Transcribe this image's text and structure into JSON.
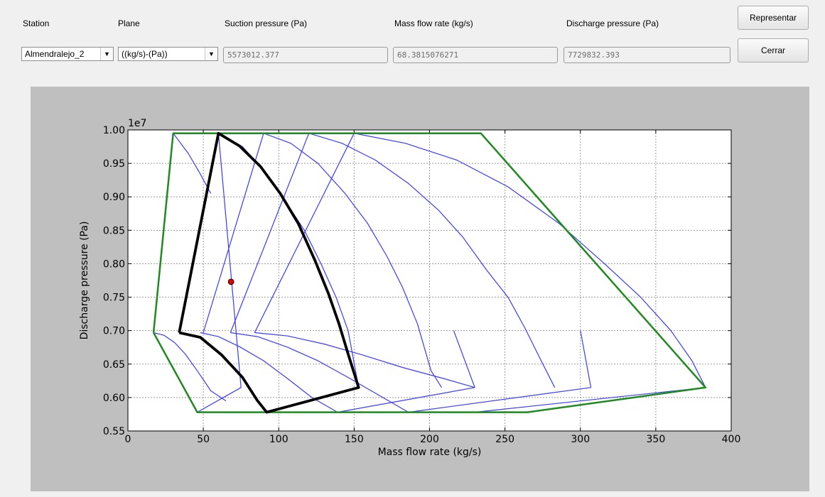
{
  "labels": {
    "station": "Station",
    "plane": "Plane",
    "suction": "Suction pressure (Pa)",
    "mass_flow": "Mass flow rate (kg/s)",
    "discharge": "Discharge pressure (Pa)"
  },
  "controls": {
    "station_value": "Almendralejo_2",
    "plane_value": "((kg/s)-(Pa))",
    "suction_value": "5573012.377",
    "mass_flow_value": "68.3815076271",
    "discharge_value": "7729832.393"
  },
  "buttons": {
    "represent": "Representar",
    "close": "Cerrar"
  },
  "icons": {
    "dropdown": "chevron-down-icon"
  },
  "chart_data": {
    "type": "line",
    "xlabel": "Mass flow rate (kg/s)",
    "ylabel": "Discharge pressure (Pa)",
    "y_offset_label": "1e7",
    "xlim": [
      0,
      400
    ],
    "ylim": [
      0.55,
      1.0
    ],
    "grid": true,
    "x_ticks": [
      "0",
      "50",
      "100",
      "150",
      "200",
      "250",
      "300",
      "350",
      "400"
    ],
    "y_ticks": [
      "0.55",
      "0.60",
      "0.65",
      "0.70",
      "0.75",
      "0.80",
      "0.85",
      "0.90",
      "0.95",
      "1.00"
    ],
    "colors": {
      "envelope": "#1f8a1f",
      "operating": "#000000",
      "curves": "#3a3aff",
      "point": "#e00000"
    },
    "series": [
      {
        "kind": "envelope",
        "points": [
          [
            17,
            0.697
          ],
          [
            30,
            0.995
          ],
          [
            234,
            0.995
          ],
          [
            383,
            0.615
          ],
          [
            265,
            0.578
          ],
          [
            46,
            0.578
          ],
          [
            17,
            0.697
          ]
        ]
      },
      {
        "kind": "operating",
        "points": [
          [
            34,
            0.697
          ],
          [
            60,
            0.995
          ],
          [
            74,
            0.976
          ],
          [
            88,
            0.945
          ],
          [
            101,
            0.905
          ],
          [
            113,
            0.86
          ],
          [
            124,
            0.805
          ],
          [
            133,
            0.755
          ],
          [
            140,
            0.71
          ],
          [
            146,
            0.665
          ],
          [
            153,
            0.615
          ],
          [
            92,
            0.578
          ],
          [
            86,
            0.595
          ],
          [
            76,
            0.63
          ],
          [
            62,
            0.664
          ],
          [
            48,
            0.69
          ],
          [
            34,
            0.697
          ]
        ]
      },
      {
        "kind": "curve",
        "points": [
          [
            30,
            0.995
          ],
          [
            40,
            0.965
          ],
          [
            47,
            0.938
          ],
          [
            55,
            0.905
          ]
        ]
      },
      {
        "kind": "curve",
        "points": [
          [
            17,
            0.697
          ],
          [
            24,
            0.693
          ],
          [
            31,
            0.682
          ],
          [
            38,
            0.665
          ],
          [
            46,
            0.64
          ],
          [
            55,
            0.61
          ],
          [
            65,
            0.595
          ]
        ]
      },
      {
        "kind": "curve",
        "points": [
          [
            48,
            0.697
          ],
          [
            60,
            0.691
          ],
          [
            74,
            0.676
          ],
          [
            90,
            0.655
          ],
          [
            106,
            0.628
          ],
          [
            122,
            0.6
          ],
          [
            139,
            0.578
          ]
        ]
      },
      {
        "kind": "curve",
        "points": [
          [
            68,
            0.697
          ],
          [
            86,
            0.691
          ],
          [
            106,
            0.675
          ],
          [
            126,
            0.655
          ],
          [
            146,
            0.63
          ],
          [
            166,
            0.604
          ],
          [
            186,
            0.578
          ]
        ]
      },
      {
        "kind": "curve",
        "points": [
          [
            84,
            0.697
          ],
          [
            106,
            0.692
          ],
          [
            130,
            0.68
          ],
          [
            155,
            0.664
          ],
          [
            182,
            0.645
          ],
          [
            210,
            0.628
          ],
          [
            230,
            0.615
          ]
        ]
      },
      {
        "kind": "curve",
        "points": [
          [
            60,
            0.995
          ],
          [
            76,
            0.975
          ],
          [
            90,
            0.94
          ],
          [
            104,
            0.895
          ],
          [
            117,
            0.85
          ],
          [
            128,
            0.8
          ],
          [
            138,
            0.75
          ],
          [
            146,
            0.7
          ],
          [
            153,
            0.615
          ]
        ]
      },
      {
        "kind": "curve",
        "points": [
          [
            90,
            0.995
          ],
          [
            108,
            0.98
          ],
          [
            126,
            0.95
          ],
          [
            144,
            0.905
          ],
          [
            159,
            0.86
          ],
          [
            172,
            0.81
          ],
          [
            182,
            0.765
          ],
          [
            192,
            0.71
          ],
          [
            201,
            0.64
          ],
          [
            208,
            0.615
          ]
        ]
      },
      {
        "kind": "curve",
        "points": [
          [
            120,
            0.995
          ],
          [
            142,
            0.98
          ],
          [
            164,
            0.955
          ],
          [
            186,
            0.92
          ],
          [
            206,
            0.88
          ],
          [
            222,
            0.84
          ],
          [
            238,
            0.79
          ],
          [
            252,
            0.75
          ],
          [
            263,
            0.705
          ],
          [
            274,
            0.655
          ],
          [
            283,
            0.615
          ]
        ]
      },
      {
        "kind": "curve",
        "points": [
          [
            150,
            0.995
          ],
          [
            184,
            0.98
          ],
          [
            218,
            0.955
          ],
          [
            252,
            0.915
          ],
          [
            286,
            0.86
          ],
          [
            316,
            0.8
          ],
          [
            340,
            0.75
          ],
          [
            360,
            0.7
          ],
          [
            374,
            0.655
          ],
          [
            383,
            0.615
          ]
        ]
      },
      {
        "kind": "line",
        "points": [
          [
            46,
            0.578
          ],
          [
            75,
            0.615
          ],
          [
            60,
            0.995
          ]
        ]
      },
      {
        "kind": "line",
        "points": [
          [
            50,
            0.697
          ],
          [
            90,
            0.995
          ]
        ]
      },
      {
        "kind": "line",
        "points": [
          [
            68,
            0.697
          ],
          [
            120,
            0.995
          ]
        ]
      },
      {
        "kind": "line",
        "points": [
          [
            84,
            0.697
          ],
          [
            150,
            0.995
          ]
        ]
      },
      {
        "kind": "line",
        "points": [
          [
            92,
            0.578
          ],
          [
            153,
            0.615
          ]
        ]
      },
      {
        "kind": "line",
        "points": [
          [
            139,
            0.578
          ],
          [
            230,
            0.615
          ]
        ]
      },
      {
        "kind": "line",
        "points": [
          [
            186,
            0.578
          ],
          [
            307,
            0.615
          ]
        ]
      },
      {
        "kind": "line",
        "points": [
          [
            230,
            0.615
          ],
          [
            216,
            0.7
          ]
        ]
      },
      {
        "kind": "line",
        "points": [
          [
            307,
            0.615
          ],
          [
            300,
            0.7
          ]
        ]
      },
      {
        "kind": "line",
        "points": [
          [
            230,
            0.578
          ],
          [
            383,
            0.615
          ]
        ]
      }
    ],
    "marker": {
      "x": 68.38,
      "y": 0.773
    }
  }
}
